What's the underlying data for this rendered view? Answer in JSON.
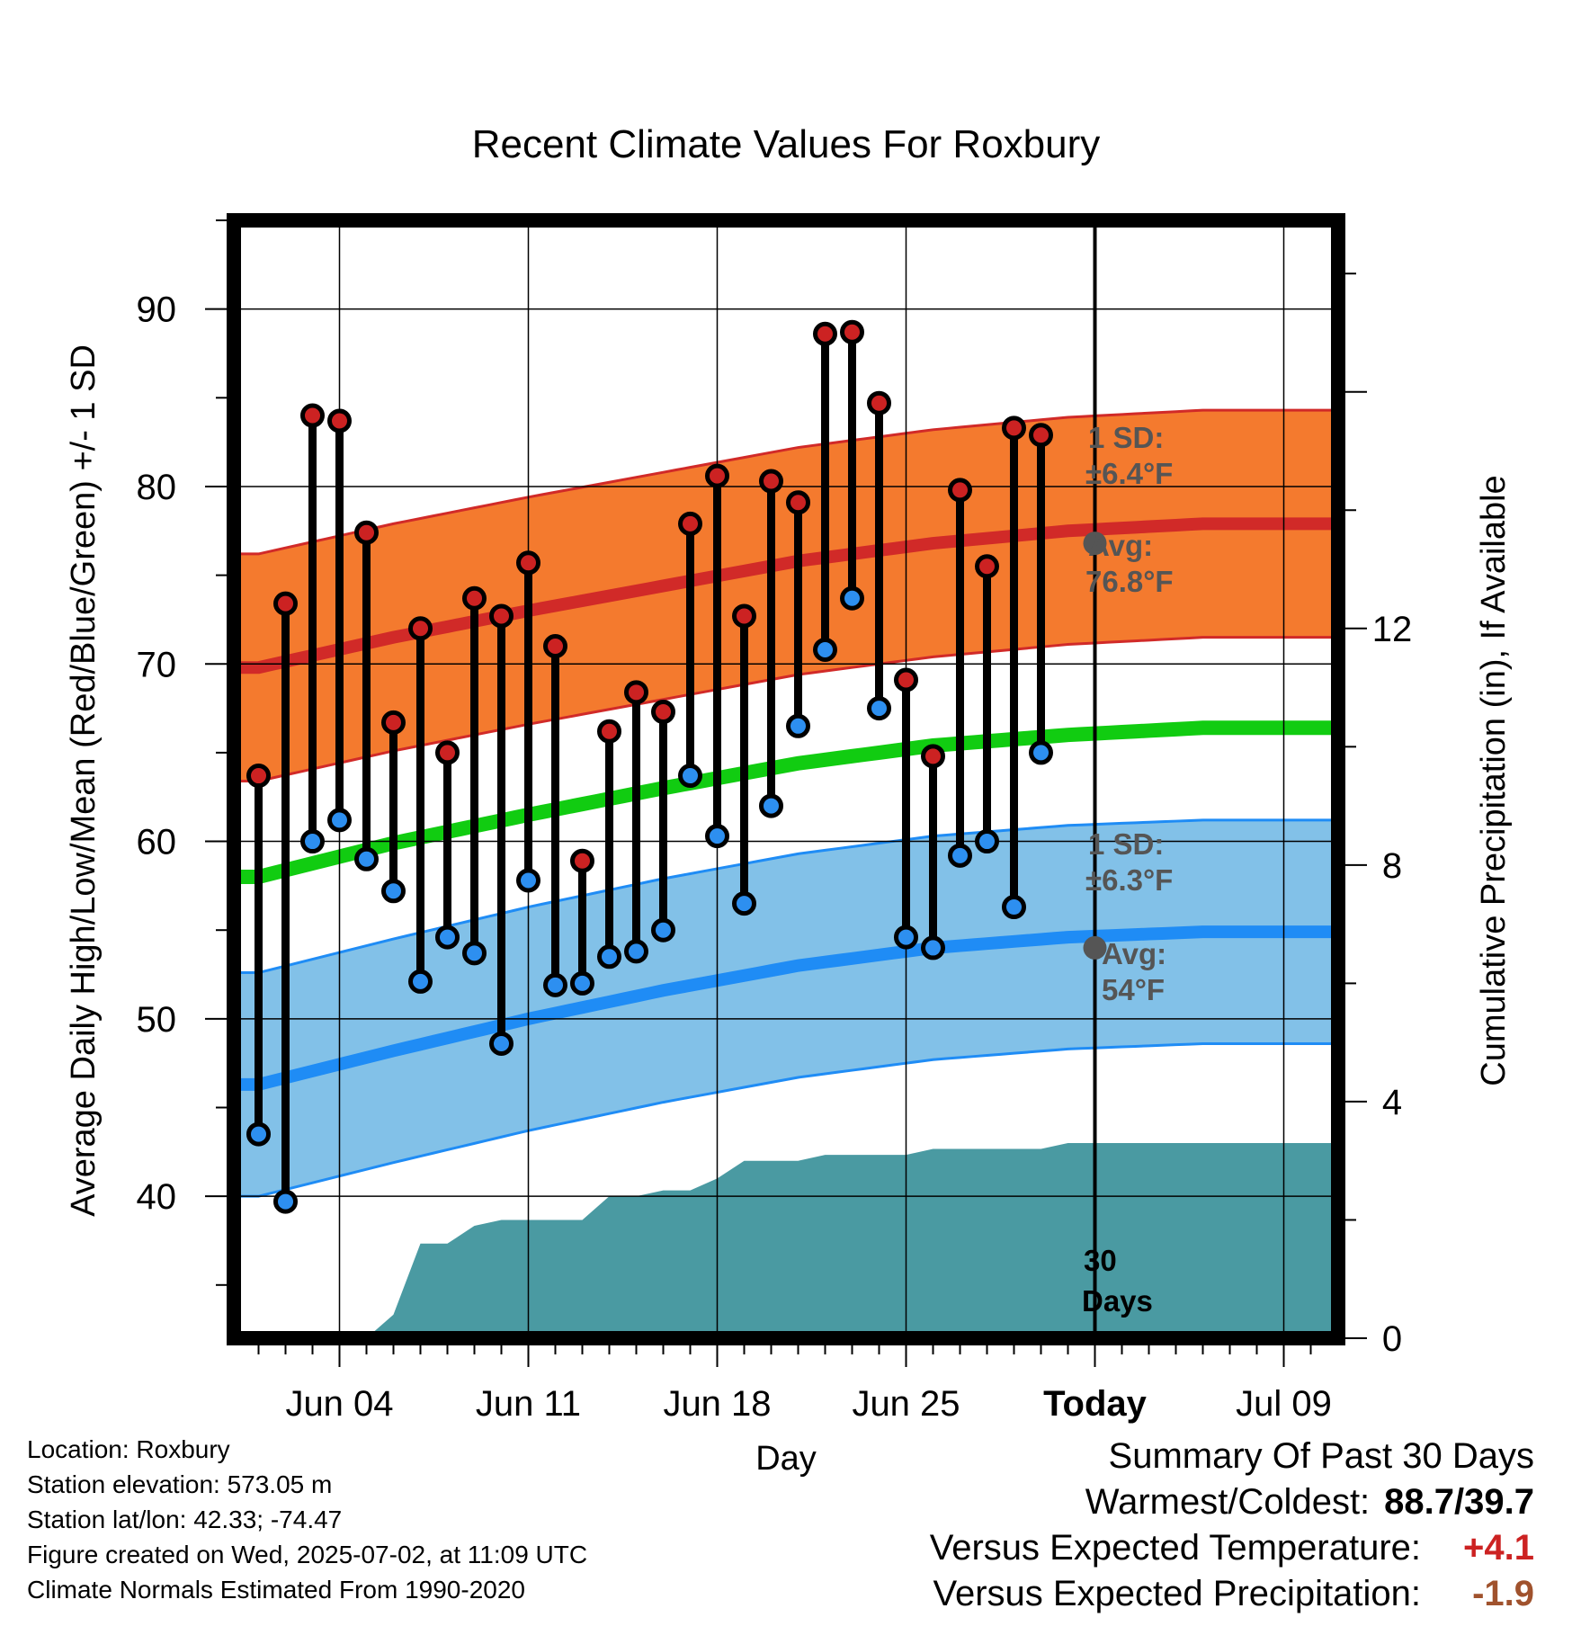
{
  "chart_data": {
    "type": "line",
    "title": "Recent Climate Values For Roxbury",
    "xlabel": "Day",
    "ylabel": "Average Daily High/Low/Mean (Red/Blue/Green) +/- 1 SD",
    "y2label": "Cumulative Precipitation (in), If Available",
    "ylim": [
      32,
      95
    ],
    "y2lim": [
      0,
      18.9
    ],
    "yticks": [
      "40",
      "50",
      "60",
      "70",
      "80",
      "90"
    ],
    "y2ticks": [
      "0",
      "4",
      "8",
      "12"
    ],
    "xtick_labels": [
      "Jun 04",
      "Jun 11",
      "Jun 18",
      "Jun 25",
      "Today",
      "Jul 09"
    ],
    "x_dates": [
      "2025-06-01",
      "2025-06-02",
      "2025-06-03",
      "2025-06-04",
      "2025-06-05",
      "2025-06-06",
      "2025-06-07",
      "2025-06-08",
      "2025-06-09",
      "2025-06-10",
      "2025-06-11",
      "2025-06-12",
      "2025-06-13",
      "2025-06-14",
      "2025-06-15",
      "2025-06-16",
      "2025-06-17",
      "2025-06-18",
      "2025-06-19",
      "2025-06-20",
      "2025-06-21",
      "2025-06-22",
      "2025-06-23",
      "2025-06-24",
      "2025-06-25",
      "2025-06-26",
      "2025-06-27",
      "2025-06-28",
      "2025-06-29",
      "2025-06-30",
      "2025-07-01"
    ],
    "series": [
      {
        "name": "High",
        "color": "#cc2222",
        "values": [
          63.7,
          73.4,
          84.0,
          83.7,
          77.4,
          66.7,
          72.0,
          65.0,
          73.7,
          72.7,
          75.7,
          71.0,
          58.9,
          66.2,
          68.4,
          67.3,
          77.9,
          80.6,
          72.7,
          80.3,
          79.1,
          88.6,
          88.7,
          84.7,
          69.1,
          64.8,
          79.8,
          75.5,
          83.3,
          82.9
        ]
      },
      {
        "name": "Low",
        "color": "#2d8ff0",
        "values": [
          43.5,
          39.7,
          60.0,
          61.2,
          59.0,
          57.2,
          52.1,
          54.6,
          53.7,
          48.6,
          57.8,
          51.9,
          52.0,
          53.5,
          53.8,
          55.0,
          63.7,
          60.3,
          56.5,
          62.0,
          66.5,
          70.8,
          73.7,
          67.5,
          54.6,
          54.0,
          59.2,
          60.0,
          56.3,
          65.0
        ]
      }
    ],
    "normals": {
      "high_avg": [
        69.8,
        71.5,
        73.0,
        74.4,
        75.8,
        76.8,
        77.5,
        77.9
      ],
      "high_sd": 6.4,
      "low_avg": [
        46.3,
        48.2,
        50.0,
        51.6,
        53.0,
        54.0,
        54.6,
        54.9
      ],
      "low_sd": 6.3,
      "mean_avg": [
        58.0,
        59.9,
        61.5,
        63.0,
        64.4,
        65.4,
        66.0,
        66.4
      ],
      "sample_day_index": [
        0,
        5,
        10,
        15,
        20,
        25,
        30,
        35
      ]
    },
    "precipitation_cumulative": [
      0,
      0,
      0,
      0,
      0,
      0.4,
      1.6,
      1.6,
      1.9,
      2.0,
      2.0,
      2.0,
      2.0,
      2.4,
      2.4,
      2.5,
      2.5,
      2.7,
      3.0,
      3.0,
      3.0,
      3.1,
      3.1,
      3.1,
      3.1,
      3.2,
      3.2,
      3.2,
      3.2,
      3.2,
      3.3,
      3.3,
      3.3,
      3.3,
      3.3,
      3.3,
      3.3,
      3.3,
      3.3,
      3.3
    ],
    "today_index": 30,
    "grid": true
  },
  "annotations": {
    "high_sd_label1": "1 SD:",
    "high_sd_label2": "±6.4°F",
    "high_avg_label1": "Avg:",
    "high_avg_label2": "76.8°F",
    "low_sd_label1": "1 SD:",
    "low_sd_label2": "±6.3°F",
    "low_avg_label1": "Avg:",
    "low_avg_label2": "54°F",
    "days_label1": "30",
    "days_label2": "Days"
  },
  "info": {
    "location": "Location: Roxbury",
    "elevation": "Station elevation: 573.05 m",
    "latlon": "Station lat/lon: 42.33; -74.47",
    "created": "Figure created on Wed, 2025-07-02, at 11:09 UTC",
    "normals": "Climate Normals Estimated From 1990-2020"
  },
  "summary": {
    "title": "Summary Of Past 30 Days",
    "warm_cold_label": "Warmest/Coldest:",
    "warm_cold_value": "88.7/39.7",
    "temp_label": "Versus Expected Temperature:",
    "temp_value": "+4.1",
    "temp_color": "#cc2222",
    "precip_label": "Versus Expected Precipitation:",
    "precip_value": "-1.9",
    "precip_color": "#a0522d"
  },
  "colors": {
    "high_band": "#f47a2e",
    "high_line": "#d12a28",
    "low_band": "#82c1e8",
    "low_line": "#1f8cf5",
    "mean_line": "#11cc11",
    "precip": "#4a9aa2"
  }
}
